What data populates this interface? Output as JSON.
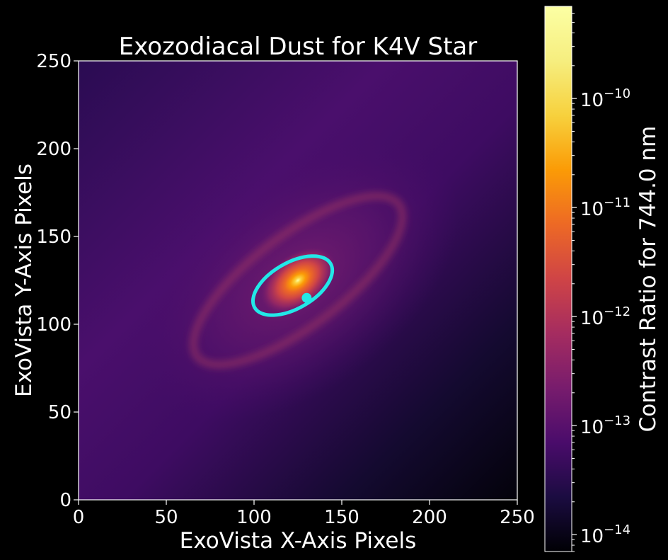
{
  "chart_data": {
    "type": "heatmap",
    "title": "Exozodiacal Dust for K4V Star",
    "xlabel": "ExoVista X-Axis Pixels",
    "ylabel": "ExoVista Y-Axis Pixels",
    "xlim": [
      0,
      250
    ],
    "ylim": [
      0,
      250
    ],
    "xticks": [
      "0",
      "50",
      "100",
      "150",
      "200",
      "250"
    ],
    "yticks": [
      "0",
      "50",
      "100",
      "150",
      "200",
      "250"
    ],
    "grid": false,
    "colormap": "inferno",
    "colorbar": {
      "label": "Contrast Ratio for 744.0 nm",
      "scale": "log",
      "range": [
        7e-15,
        7e-10
      ],
      "ticks": [
        {
          "value": 1e-14,
          "base": "10",
          "exp": "−14"
        },
        {
          "value": 1e-13,
          "base": "10",
          "exp": "−13"
        },
        {
          "value": 1e-12,
          "base": "10",
          "exp": "−12"
        },
        {
          "value": 1e-11,
          "base": "10",
          "exp": "−11"
        },
        {
          "value": 1e-10,
          "base": "10",
          "exp": "−10"
        }
      ]
    },
    "star_center": [
      125,
      125
    ],
    "outer_dust_ring": {
      "center": [
        125,
        125
      ],
      "semi_major": 72,
      "semi_minor": 26,
      "angle_deg": 37
    },
    "planet_orbit": {
      "center": [
        122,
        122
      ],
      "semi_major": 25,
      "semi_minor": 13,
      "angle_deg": 30,
      "color": "#22e8e8"
    },
    "planet": {
      "x": 130,
      "y": 115,
      "color": "#22e8e8"
    }
  }
}
